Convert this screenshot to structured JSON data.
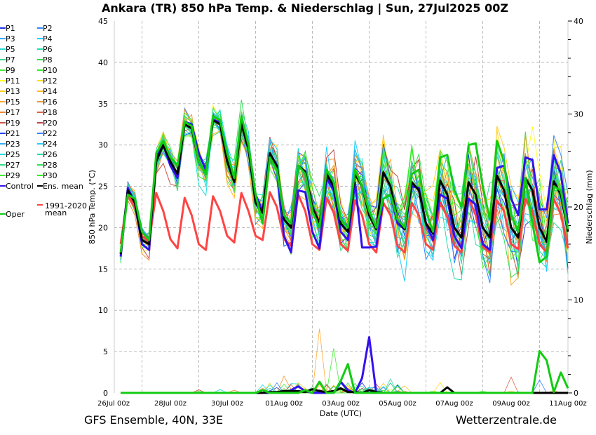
{
  "chart_data": {
    "type": "line",
    "title": "Ankara  (TR)  850 hPa Temp. & Niederschlag | Sun, 27Jul2025 00Z",
    "ylabel": "850 hPa Temp. (°C)",
    "y2label": "Niederschlag (mm)",
    "xlabel": "Date (UTC)",
    "ylim": [
      0,
      45
    ],
    "y2lim": [
      0,
      40
    ],
    "yticks": [
      "0",
      "5",
      "10",
      "15",
      "20",
      "25",
      "30",
      "35",
      "40",
      "45"
    ],
    "y2ticks": [
      "0",
      "10",
      "20",
      "30",
      "40"
    ],
    "xticks": [
      "26Jul 00z",
      "28Jul 00z",
      "30Jul 00z",
      "01Aug 00z",
      "03Aug 00z",
      "05Aug 00z",
      "07Aug 00z",
      "09Aug 00z",
      "11Aug 00z"
    ],
    "time_step_hours": 6,
    "first_time": "26Jul 06z",
    "grid": true,
    "legend_position": "left",
    "series": [
      {
        "name": "Ens. mean",
        "color": "#000000",
        "width": 3,
        "values": [
          16.8,
          24.5,
          23,
          18.5,
          18,
          28,
          30,
          28,
          26.5,
          32.5,
          32,
          28,
          26.5,
          33,
          32.5,
          28,
          25.5,
          32.5,
          29.5,
          23,
          21.8,
          29,
          27.5,
          21,
          20,
          27.5,
          26.8,
          22.5,
          20.5,
          26.5,
          25,
          20.5,
          19.5,
          26.5,
          25,
          21.5,
          19.8,
          26.7,
          25,
          21,
          19.8,
          25.5,
          24.5,
          20.5,
          19.3,
          25.7,
          24,
          20,
          18.8,
          25.5,
          24,
          20,
          18.8,
          26.3,
          24.5,
          20,
          18.8,
          26,
          24.5,
          20,
          18.3,
          25.6,
          24,
          19.5
        ],
        "precip": [
          0,
          0,
          0,
          0,
          0,
          0,
          0,
          0,
          0,
          0,
          0,
          0,
          0,
          0,
          0,
          0,
          0,
          0,
          0,
          0,
          0,
          0.1,
          0.1,
          0.2,
          0.2,
          0.2,
          0.1,
          0.4,
          0.2,
          0.1,
          0.2,
          0.5,
          0.1,
          0.1,
          0,
          0.3,
          0.1,
          0,
          0,
          0,
          0,
          0,
          0,
          0,
          0,
          0,
          0.6,
          0,
          0,
          0,
          0,
          0,
          0,
          0,
          0,
          0,
          0,
          0,
          0,
          0,
          0,
          0,
          0,
          0
        ]
      },
      {
        "name": "Control",
        "color": "#3311ee",
        "width": 3,
        "values": [
          16.5,
          24.8,
          23,
          18,
          17.3,
          28.5,
          30,
          27.5,
          26,
          32.8,
          32.5,
          29,
          27,
          33,
          32.8,
          29,
          25.5,
          33,
          30,
          24,
          22,
          29,
          27.3,
          19,
          17,
          24.5,
          24.3,
          19.5,
          17.5,
          26,
          24.5,
          19.5,
          18.5,
          25.5,
          17.6,
          17.6,
          17.7,
          23.5,
          24,
          20.5,
          19.8,
          25,
          24.8,
          20.5,
          18.5,
          24,
          23.5,
          19,
          17.5,
          23.5,
          22.8,
          18,
          17.3,
          27.2,
          27.5,
          23.5,
          21.5,
          28.5,
          28.2,
          22.2,
          22.2,
          28.8,
          26.5,
          20.5
        ],
        "precip": [
          0,
          0,
          0,
          0,
          0,
          0,
          0,
          0,
          0,
          0,
          0,
          0,
          0,
          0,
          0,
          0,
          0,
          0,
          0,
          0,
          0,
          0,
          0,
          0,
          0.3,
          0.7,
          0.2,
          0,
          0,
          0,
          0,
          1.2,
          0.3,
          0,
          1.6,
          6.0,
          0,
          0,
          0,
          0,
          0,
          0,
          0,
          0,
          0,
          0,
          0,
          0,
          0,
          0,
          0,
          0,
          0,
          0,
          0,
          0,
          0,
          0,
          0,
          0,
          0,
          0,
          0,
          0
        ]
      },
      {
        "name": "Oper",
        "color": "#11cc11",
        "width": 3,
        "values": [
          17,
          24,
          23.5,
          19.5,
          18.5,
          29,
          30.5,
          28.5,
          27.5,
          32.8,
          32.3,
          28,
          26.5,
          33.5,
          33,
          29,
          26,
          33.5,
          30,
          24,
          20.5,
          28.5,
          27,
          21.5,
          20.5,
          27.5,
          26.5,
          22,
          20,
          27,
          25.5,
          21,
          20,
          27,
          25,
          22,
          20,
          23.5,
          24,
          21,
          20,
          26.5,
          27,
          22,
          19.5,
          28.5,
          28.8,
          24.5,
          22.5,
          30,
          30.2,
          25,
          21,
          30.5,
          28,
          21.5,
          19.5,
          26,
          20.5,
          15.8,
          16.5,
          25,
          24.5,
          19.8
        ],
        "precip": [
          0,
          0,
          0,
          0,
          0,
          0,
          0,
          0,
          0,
          0,
          0,
          0,
          0,
          0,
          0,
          0,
          0,
          0,
          0,
          0,
          0.3,
          0,
          0,
          0,
          0,
          0,
          0.3,
          0,
          1.2,
          0,
          0,
          1.3,
          3.1,
          0,
          0,
          0,
          0,
          0,
          0,
          0,
          0,
          0,
          0,
          0,
          0,
          0,
          0,
          0,
          0,
          0,
          0,
          0,
          0,
          0,
          0,
          0,
          0,
          0,
          0,
          4.5,
          3.5,
          0.1,
          2.2,
          0.5
        ]
      },
      {
        "name": "1991-2020 mean",
        "color": "#ff4444",
        "width": 3,
        "values": [
          18,
          24,
          22.5,
          19,
          18.2,
          24.2,
          22,
          18.6,
          17.5,
          23.6,
          21.5,
          18,
          17.3,
          23.8,
          22,
          19,
          18.2,
          24.2,
          22,
          19,
          18.5,
          24.3,
          22.5,
          18.6,
          17.8,
          24,
          22,
          18,
          17.3,
          23.6,
          21.8,
          18,
          17.2,
          23.3,
          21.5,
          18,
          17,
          23,
          21.5,
          17.8,
          17,
          23,
          21.5,
          18,
          17.3,
          23,
          21.3,
          17.8,
          17,
          23.6,
          21.5,
          17.7,
          17,
          23.3,
          22,
          18,
          17.4,
          23.5,
          22,
          18,
          17,
          23.5,
          21.6,
          17.5
        ]
      }
    ],
    "members": {
      "names": [
        "P1",
        "P2",
        "P3",
        "P4",
        "P5",
        "P6",
        "P7",
        "P8",
        "P9",
        "P10",
        "P11",
        "P12",
        "P13",
        "P14",
        "P15",
        "P16",
        "P17",
        "P18",
        "P19",
        "P20",
        "P21",
        "P22",
        "P23",
        "P24",
        "P25",
        "P26",
        "P27",
        "P28",
        "P29",
        "P30"
      ],
      "colors": [
        "#2233ee",
        "#3388ff",
        "#33aaff",
        "#22ccff",
        "#22dddd",
        "#22ddaa",
        "#33dd88",
        "#33dd55",
        "#44ee33",
        "#33ee22",
        "#ffff22",
        "#ffdd22",
        "#ffcc22",
        "#ffbb22",
        "#ffaa33",
        "#ee9933",
        "#ee8833",
        "#dd6644",
        "#cc5544",
        "#bb4444",
        "#2244ee",
        "#3388ff",
        "#33aaff",
        "#22ccff",
        "#22dddd",
        "#22ddaa",
        "#33dd88",
        "#33dd55",
        "#44ee33",
        "#33ee22"
      ],
      "spread_start_c": 1.0,
      "spread_end_c": 4.5,
      "precip_peaks": [
        {
          "member": "P15",
          "index": 28,
          "value": 6.9
        },
        {
          "member": "P16",
          "index": 23,
          "value": 1.8
        },
        {
          "member": "P9",
          "index": 30,
          "value": 4.8
        },
        {
          "member": "P6",
          "index": 38,
          "value": 1.5
        },
        {
          "member": "P12",
          "index": 45,
          "value": 1.1
        },
        {
          "member": "P18",
          "index": 55,
          "value": 1.7
        },
        {
          "member": "P2",
          "index": 59,
          "value": 1.4
        }
      ]
    }
  },
  "legend": {
    "items": [
      {
        "label": "P1",
        "color": "#2233ee"
      },
      {
        "label": "P2",
        "color": "#3388ff"
      },
      {
        "label": "P3",
        "color": "#33aaff"
      },
      {
        "label": "P4",
        "color": "#22ccff"
      },
      {
        "label": "P5",
        "color": "#22dddd"
      },
      {
        "label": "P6",
        "color": "#22ddaa"
      },
      {
        "label": "P7",
        "color": "#33dd88"
      },
      {
        "label": "P8",
        "color": "#33dd55"
      },
      {
        "label": "P9",
        "color": "#44ee33"
      },
      {
        "label": "P10",
        "color": "#33ee22"
      },
      {
        "label": "P11",
        "color": "#ffff22"
      },
      {
        "label": "P12",
        "color": "#ffdd22"
      },
      {
        "label": "P13",
        "color": "#ffcc22"
      },
      {
        "label": "P14",
        "color": "#ffbb22"
      },
      {
        "label": "P15",
        "color": "#ffaa33"
      },
      {
        "label": "P16",
        "color": "#ee9933"
      },
      {
        "label": "P17",
        "color": "#ee8833"
      },
      {
        "label": "P18",
        "color": "#dd6644"
      },
      {
        "label": "P19",
        "color": "#cc5544"
      },
      {
        "label": "P20",
        "color": "#bb4444"
      },
      {
        "label": "P21",
        "color": "#2244ee"
      },
      {
        "label": "P22",
        "color": "#3388ff"
      },
      {
        "label": "P23",
        "color": "#33aaff"
      },
      {
        "label": "P24",
        "color": "#22ccff"
      },
      {
        "label": "P25",
        "color": "#22dddd"
      },
      {
        "label": "P26",
        "color": "#22ddaa"
      },
      {
        "label": "P27",
        "color": "#33dd88"
      },
      {
        "label": "P28",
        "color": "#33dd55"
      },
      {
        "label": "P29",
        "color": "#44ee33"
      },
      {
        "label": "P30",
        "color": "#33ee22"
      },
      {
        "label": "Control",
        "color": "#3311ee"
      },
      {
        "label": "Ens. mean",
        "color": "#000000"
      }
    ],
    "clim_label_1": "1991-2020",
    "clim_label_2": "mean",
    "clim_color": "#ff4444",
    "oper_label": "Oper",
    "oper_color": "#11cc11"
  },
  "footer": {
    "model": "GFS Ensemble, 40N, 33E",
    "source": "Wetterzentrale.de"
  }
}
